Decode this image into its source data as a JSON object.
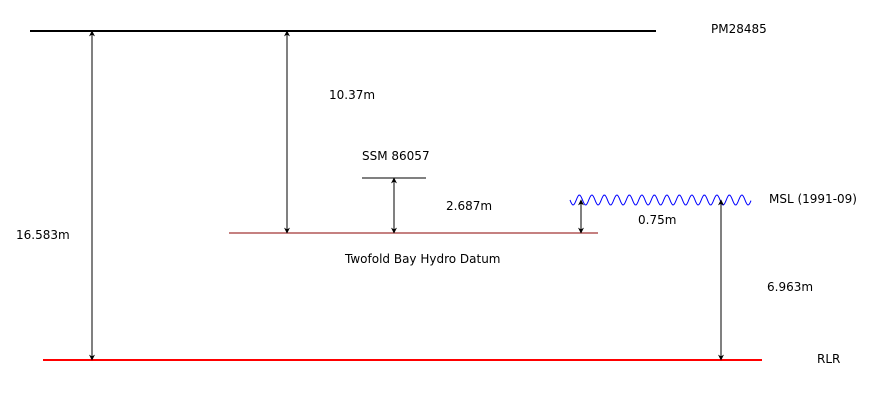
{
  "labels": {
    "pm": "PM28485",
    "rlr": "RLR",
    "msl": "MSL (1991-09)",
    "ssm": "SSM 86057",
    "hydro_datum": "Twofold Bay Hydro Datum"
  },
  "measurements": {
    "pm_to_rlr": "16.583m",
    "pm_to_hydro": "10.37m",
    "ssm_to_hydro": "2.687m",
    "msl_to_hydro": "0.75m",
    "msl_to_rlr": "6.963m"
  },
  "colors": {
    "pm_line": "#000000",
    "rlr_line": "#ff0000",
    "hydro_line": "#8b0000",
    "msl_wave": "#0000ff",
    "arrows": "#000000"
  }
}
